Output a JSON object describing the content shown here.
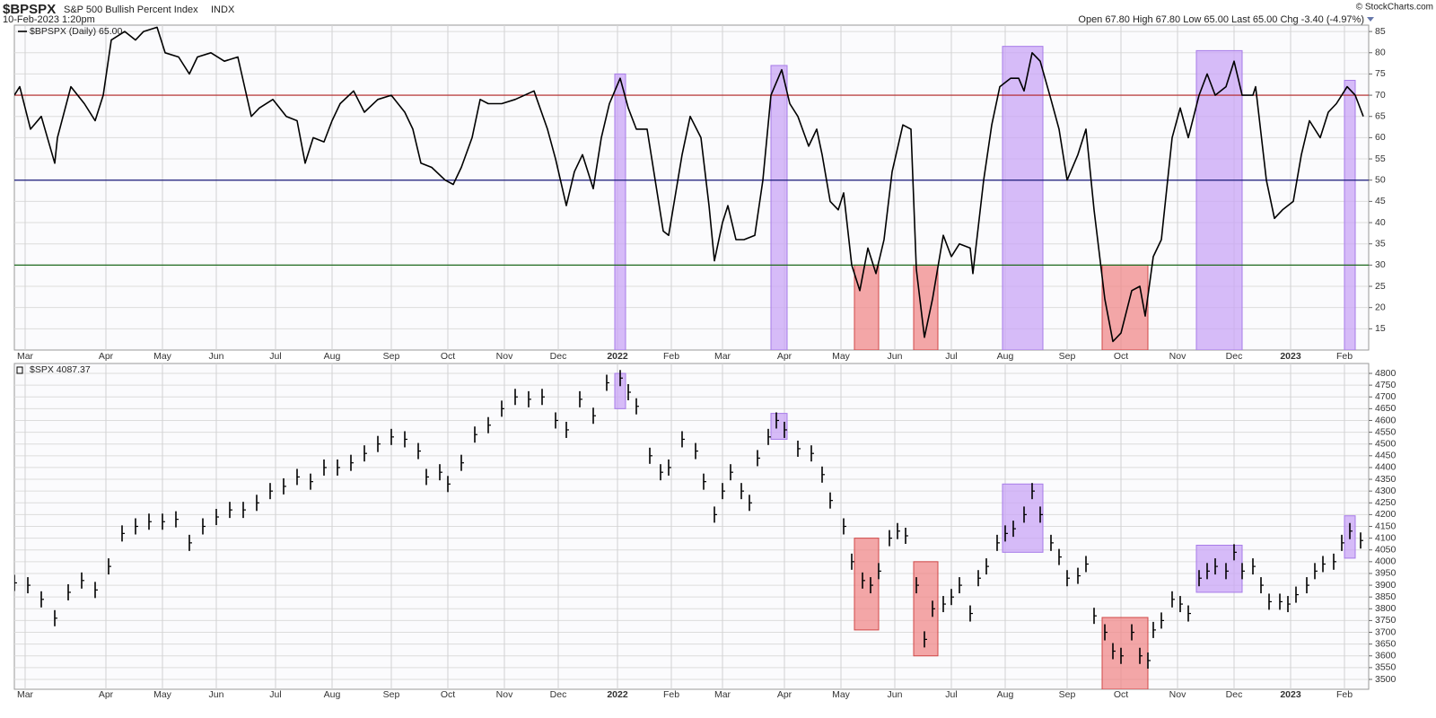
{
  "header": {
    "symbol": "$BPSPX",
    "name": "S&P 500 Bullish Percent Index",
    "exchange": "INDX",
    "timestamp": "10-Feb-2023 1:20pm",
    "quote": "Open 67.80 High 67.80 Low 65.00 Last 65.00 Chg -3.40 (-4.97%)",
    "copyright": "© StockCharts.com"
  },
  "chart_data": [
    {
      "type": "line",
      "legend": "$BPSPX (Daily) 65.00",
      "color": "#000000",
      "x": [
        0,
        2,
        6,
        10,
        15,
        16,
        21,
        26,
        30,
        33,
        36,
        41,
        45,
        48,
        53,
        56,
        61,
        65,
        68,
        73,
        78,
        83,
        88,
        91,
        96,
        101,
        105,
        108,
        111,
        115,
        118,
        121,
        126,
        130,
        135,
        140,
        145,
        148,
        151,
        155,
        160,
        163,
        166,
        170,
        173,
        176,
        181,
        186,
        193,
        198,
        201,
        205,
        208,
        211,
        215,
        218,
        221,
        225,
        228,
        231,
        235,
        238,
        241,
        243,
        248,
        251,
        255,
        258,
        260,
        263,
        265,
        268,
        271,
        275,
        278,
        281,
        285,
        288,
        291,
        295,
        298,
        300,
        303,
        306,
        308,
        311,
        314,
        317,
        320,
        323,
        326,
        330,
        333,
        335,
        338,
        341,
        345,
        348,
        351,
        355,
        356,
        360,
        363,
        366,
        370,
        373,
        375,
        378,
        381,
        385,
        388,
        391,
        395,
        398,
        401,
        405,
        408,
        411,
        415,
        418,
        420,
        423,
        426,
        430,
        433,
        436,
        440,
        443,
        446,
        450,
        453,
        456,
        460,
        461,
        465,
        468,
        471,
        475,
        478,
        481,
        485,
        488,
        491,
        495,
        498,
        501
      ],
      "values": [
        70,
        72,
        62,
        65,
        54,
        60,
        72,
        68,
        64,
        70,
        83,
        85,
        83,
        85,
        86,
        80,
        79,
        75,
        79,
        80,
        78,
        79,
        65,
        67,
        69,
        65,
        64,
        54,
        60,
        59,
        64,
        68,
        71,
        66,
        69,
        70,
        66,
        62,
        54,
        53,
        50,
        49,
        53,
        60,
        69,
        68,
        68,
        69,
        71,
        62,
        55,
        44,
        52,
        56,
        48,
        60,
        68,
        74,
        67,
        62,
        62,
        50,
        38,
        37,
        56,
        65,
        60,
        44,
        31,
        40,
        44,
        36,
        36,
        37,
        50,
        70,
        76,
        68,
        65,
        58,
        62,
        56,
        45,
        43,
        47,
        30,
        24,
        34,
        28,
        36,
        52,
        63,
        62,
        29,
        13,
        22,
        37,
        32,
        35,
        34,
        28,
        50,
        63,
        72,
        74,
        74,
        71,
        80,
        78,
        69,
        62,
        50,
        56,
        62,
        43,
        22,
        12,
        14,
        24,
        25,
        18,
        32,
        36,
        60,
        67,
        60,
        70,
        75,
        70,
        72,
        78,
        70,
        70,
        72,
        50,
        41,
        43,
        45,
        56,
        64,
        60,
        66,
        68,
        72,
        70,
        65
      ],
      "xlim": [
        0,
        503
      ],
      "ylim": [
        10,
        86.5
      ],
      "yticks": [
        15,
        20,
        25,
        30,
        35,
        40,
        45,
        50,
        55,
        60,
        65,
        70,
        75,
        80,
        85
      ],
      "xticks": [
        {
          "value": 4,
          "label": "Mar"
        },
        {
          "value": 34,
          "label": "Apr"
        },
        {
          "value": 55,
          "label": "May"
        },
        {
          "value": 75,
          "label": "Jun"
        },
        {
          "value": 97,
          "label": "Jul"
        },
        {
          "value": 118,
          "label": "Aug"
        },
        {
          "value": 140,
          "label": "Sep"
        },
        {
          "value": 161,
          "label": "Oct"
        },
        {
          "value": 182,
          "label": "Nov"
        },
        {
          "value": 202,
          "label": "Dec"
        },
        {
          "value": 224,
          "label": "2022"
        },
        {
          "value": 244,
          "label": "Feb"
        },
        {
          "value": 263,
          "label": "Mar"
        },
        {
          "value": 286,
          "label": "Apr"
        },
        {
          "value": 307,
          "label": "May"
        },
        {
          "value": 327,
          "label": "Jun"
        },
        {
          "value": 348,
          "label": "Jul"
        },
        {
          "value": 368,
          "label": "Aug"
        },
        {
          "value": 391,
          "label": "Sep"
        },
        {
          "value": 411,
          "label": "Oct"
        },
        {
          "value": 432,
          "label": "Nov"
        },
        {
          "value": 453,
          "label": "Dec"
        },
        {
          "value": 474,
          "label": "2023"
        },
        {
          "value": 494,
          "label": "Feb"
        }
      ],
      "ref_lines": [
        {
          "value": 70,
          "color": "#b22222"
        },
        {
          "value": 50,
          "color": "#1a1a7a"
        },
        {
          "value": 30,
          "color": "#1f6b1f"
        }
      ],
      "highlights": [
        {
          "x0": 223,
          "x1": 227,
          "y0": 10,
          "y1": 75,
          "color": "#c9a6f5"
        },
        {
          "x0": 281,
          "x1": 287,
          "y0": 10,
          "y1": 77,
          "color": "#c9a6f5"
        },
        {
          "x0": 312,
          "x1": 321,
          "y0": 10,
          "y1": 30,
          "color": "#f08a8a"
        },
        {
          "x0": 334,
          "x1": 343,
          "y0": 10,
          "y1": 30,
          "color": "#f08a8a"
        },
        {
          "x0": 367,
          "x1": 382,
          "y0": 10,
          "y1": 81.5,
          "color": "#c9a6f5"
        },
        {
          "x0": 404,
          "x1": 421,
          "y0": 10,
          "y1": 30,
          "color": "#f08a8a"
        },
        {
          "x0": 439,
          "x1": 456,
          "y0": 10,
          "y1": 80.5,
          "color": "#c9a6f5"
        },
        {
          "x0": 494,
          "x1": 498,
          "y0": 10,
          "y1": 73.5,
          "color": "#c9a6f5"
        }
      ],
      "grid": true
    },
    {
      "type": "ohlc",
      "legend": "$SPX 4087.37",
      "color": "#000000",
      "x": [
        0,
        5,
        10,
        15,
        20,
        25,
        30,
        35,
        40,
        45,
        50,
        55,
        60,
        65,
        70,
        75,
        80,
        85,
        90,
        95,
        100,
        105,
        110,
        115,
        120,
        125,
        130,
        135,
        140,
        145,
        150,
        153,
        158,
        161,
        166,
        171,
        176,
        181,
        186,
        191,
        196,
        201,
        205,
        210,
        215,
        220,
        225,
        228,
        231,
        236,
        240,
        243,
        248,
        253,
        256,
        260,
        263,
        266,
        270,
        273,
        276,
        280,
        283,
        286,
        291,
        296,
        300,
        303,
        308,
        311,
        315,
        318,
        321,
        325,
        328,
        331,
        335,
        338,
        341,
        345,
        348,
        351,
        355,
        358,
        361,
        365,
        368,
        371,
        375,
        378,
        381,
        385,
        388,
        391,
        395,
        398,
        401,
        405,
        408,
        411,
        415,
        418,
        421,
        423,
        426,
        430,
        433,
        436,
        440,
        443,
        446,
        450,
        453,
        456,
        460,
        463,
        466,
        470,
        473,
        476,
        480,
        483,
        486,
        490,
        493,
        496,
        500
      ],
      "values": [
        3910,
        3900,
        3840,
        3760,
        3870,
        3920,
        3880,
        3980,
        4120,
        4150,
        4170,
        4170,
        4180,
        4080,
        4150,
        4190,
        4220,
        4220,
        4250,
        4300,
        4320,
        4360,
        4340,
        4400,
        4400,
        4420,
        4460,
        4500,
        4530,
        4520,
        4470,
        4360,
        4380,
        4330,
        4420,
        4540,
        4580,
        4650,
        4700,
        4690,
        4700,
        4600,
        4560,
        4690,
        4620,
        4760,
        4780,
        4720,
        4660,
        4450,
        4380,
        4400,
        4520,
        4470,
        4340,
        4200,
        4300,
        4380,
        4300,
        4250,
        4440,
        4530,
        4600,
        4560,
        4480,
        4460,
        4370,
        4260,
        4150,
        4000,
        3920,
        3900,
        3960,
        4100,
        4130,
        4110,
        3900,
        3670,
        3800,
        3820,
        3850,
        3900,
        3780,
        3930,
        3980,
        4080,
        4120,
        4140,
        4200,
        4300,
        4200,
        4080,
        4020,
        3930,
        3940,
        3990,
        3770,
        3700,
        3620,
        3600,
        3700,
        3600,
        3580,
        3710,
        3750,
        3840,
        3820,
        3780,
        3930,
        3960,
        3980,
        3960,
        4040,
        3960,
        3980,
        3900,
        3830,
        3830,
        3820,
        3860,
        3900,
        3960,
        3990,
        4000,
        4080,
        4130,
        4090
      ],
      "xlim": [
        0,
        503
      ],
      "ylim": [
        3458,
        4842
      ],
      "yticks": [
        3500,
        3550,
        3600,
        3650,
        3700,
        3750,
        3800,
        3850,
        3900,
        3950,
        4000,
        4050,
        4100,
        4150,
        4200,
        4250,
        4300,
        4350,
        4400,
        4450,
        4500,
        4550,
        4600,
        4650,
        4700,
        4750,
        4800
      ],
      "xticks": [
        {
          "value": 4,
          "label": "Mar"
        },
        {
          "value": 34,
          "label": "Apr"
        },
        {
          "value": 55,
          "label": "May"
        },
        {
          "value": 75,
          "label": "Jun"
        },
        {
          "value": 97,
          "label": "Jul"
        },
        {
          "value": 118,
          "label": "Aug"
        },
        {
          "value": 140,
          "label": "Sep"
        },
        {
          "value": 161,
          "label": "Oct"
        },
        {
          "value": 182,
          "label": "Nov"
        },
        {
          "value": 202,
          "label": "Dec"
        },
        {
          "value": 224,
          "label": "2022"
        },
        {
          "value": 244,
          "label": "Feb"
        },
        {
          "value": 263,
          "label": "Mar"
        },
        {
          "value": 286,
          "label": "Apr"
        },
        {
          "value": 307,
          "label": "May"
        },
        {
          "value": 327,
          "label": "Jun"
        },
        {
          "value": 348,
          "label": "Jul"
        },
        {
          "value": 368,
          "label": "Aug"
        },
        {
          "value": 391,
          "label": "Sep"
        },
        {
          "value": 411,
          "label": "Oct"
        },
        {
          "value": 432,
          "label": "Nov"
        },
        {
          "value": 453,
          "label": "Dec"
        },
        {
          "value": 474,
          "label": "2023"
        },
        {
          "value": 494,
          "label": "Feb"
        }
      ],
      "highlights": [
        {
          "x0": 223,
          "x1": 227,
          "y0": 4650,
          "y1": 4800,
          "color": "#c9a6f5"
        },
        {
          "x0": 281,
          "x1": 287,
          "y0": 4520,
          "y1": 4630,
          "color": "#c9a6f5"
        },
        {
          "x0": 312,
          "x1": 321,
          "y0": 3710,
          "y1": 4100,
          "color": "#f08a8a"
        },
        {
          "x0": 334,
          "x1": 343,
          "y0": 3600,
          "y1": 4000,
          "color": "#f08a8a"
        },
        {
          "x0": 367,
          "x1": 382,
          "y0": 4040,
          "y1": 4330,
          "color": "#c9a6f5"
        },
        {
          "x0": 404,
          "x1": 421,
          "y0": 3458,
          "y1": 3763,
          "color": "#f08a8a"
        },
        {
          "x0": 439,
          "x1": 456,
          "y0": 3870,
          "y1": 4070,
          "color": "#c9a6f5"
        },
        {
          "x0": 494,
          "x1": 498,
          "y0": 4015,
          "y1": 4195,
          "color": "#c9a6f5"
        }
      ],
      "grid": true
    }
  ]
}
